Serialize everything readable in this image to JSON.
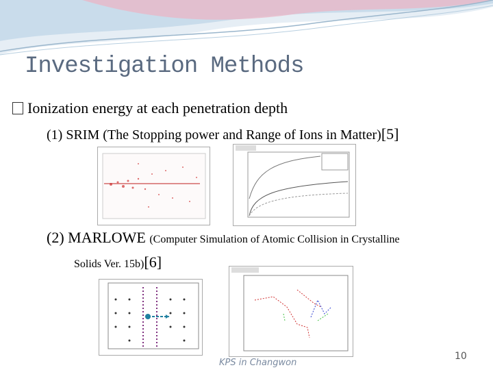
{
  "title": "Investigation Methods",
  "bullet": {
    "text": "Ionization energy at each penetration depth"
  },
  "items": [
    {
      "label": "(1) SRIM (The Stopping power and Range of Ions in Matter)",
      "ref": "[5]"
    },
    {
      "label": "(2) MARLOWE",
      "description": "(Computer Simulation of Atomic Collision in Crystalline",
      "description_cont": "Solids Ver. 15b)",
      "ref": "[6]"
    }
  ],
  "footer": {
    "text": "KPS in Changwon",
    "page_number": 10
  }
}
